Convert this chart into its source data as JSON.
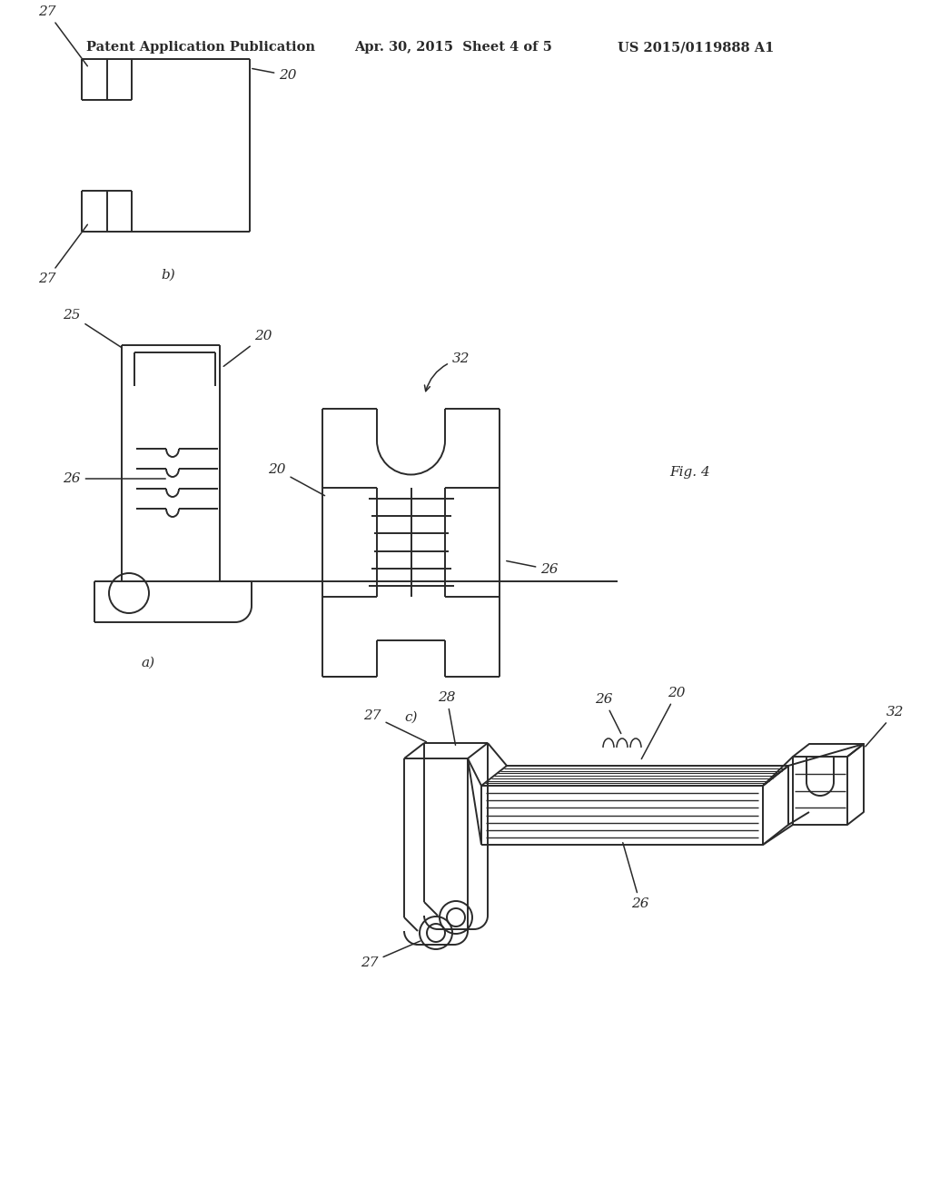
{
  "bg_color": "#ffffff",
  "text_color": "#2a2a2a",
  "line_color": "#2a2a2a",
  "header_left": "Patent Application Publication",
  "header_mid": "Apr. 30, 2015  Sheet 4 of 5",
  "header_right": "US 2015/0119888 A1",
  "fig_label": "Fig. 4",
  "header_fontsize": 10.5,
  "label_fontsize": 11
}
